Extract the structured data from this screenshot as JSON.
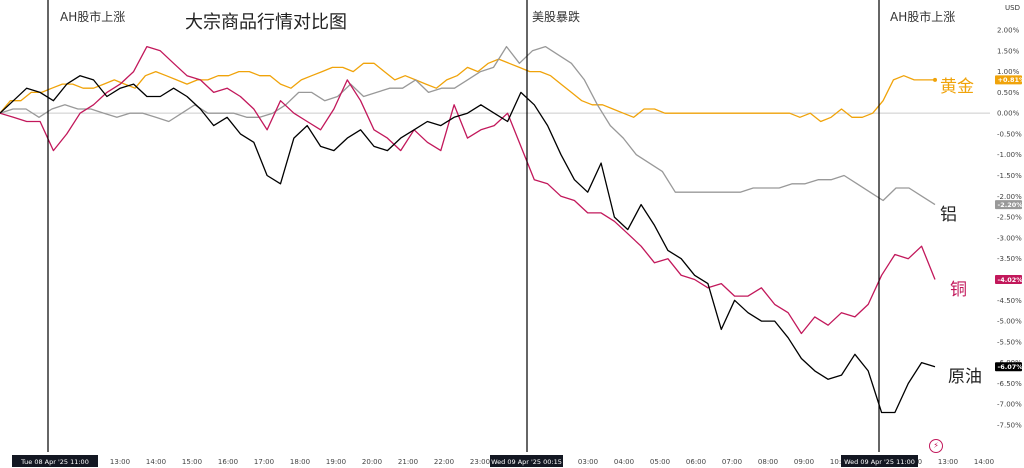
{
  "chart_title": "大宗商品行情对比图",
  "currency": "USD",
  "chart_data": {
    "type": "line",
    "title": "大宗商品行情对比图",
    "ylim": [
      -8.0,
      2.2
    ],
    "y_ticks": [
      "2.00%",
      "1.50%",
      "1.00%",
      "0.50%",
      "0.00%",
      "-0.50%",
      "-1.00%",
      "-1.50%",
      "-2.00%",
      "-2.50%",
      "-3.00%",
      "-3.50%",
      "-4.00%",
      "-4.50%",
      "-5.00%",
      "-5.50%",
      "-6.00%",
      "-6.50%",
      "-7.00%",
      "-7.50%"
    ],
    "x_ticks": [
      "11:00",
      "12:00",
      "13:00",
      "14:00",
      "15:00",
      "16:00",
      "17:00",
      "18:00",
      "19:00",
      "20:00",
      "21:00",
      "22:00",
      "23:00",
      "00:15",
      "02:00",
      "03:00",
      "04:00",
      "05:00",
      "06:00",
      "07:00",
      "08:00",
      "09:00",
      "10:00",
      "11:00",
      "12:00",
      "13:00",
      "14:00"
    ],
    "x_highlight_labels": [
      "Tue 08 Apr '25   11:00",
      "Wed 09 Apr '25   00:15",
      "Wed 09 Apr '25   11:00"
    ],
    "events": [
      "AH股市上涨",
      "美股暴跌",
      "AH股市上涨"
    ],
    "series": [
      {
        "name": "黄金",
        "color": "#f0a30a",
        "last_label": "+0.81%",
        "values": [
          0,
          0.3,
          0.3,
          0.5,
          0.5,
          0.6,
          0.7,
          0.7,
          0.6,
          0.6,
          0.7,
          0.8,
          0.7,
          0.6,
          0.9,
          1.0,
          0.9,
          0.8,
          0.7,
          0.8,
          0.8,
          0.9,
          0.9,
          1.0,
          1.0,
          0.9,
          0.9,
          0.7,
          0.6,
          0.8,
          0.9,
          1.0,
          1.1,
          1.1,
          1.0,
          1.2,
          1.2,
          1.0,
          0.8,
          0.9,
          0.8,
          0.7,
          0.6,
          0.8,
          0.9,
          1.1,
          1.0,
          1.2,
          1.3,
          1.2,
          1.1,
          1.0,
          1.0,
          0.9,
          0.7,
          0.5,
          0.3,
          0.2,
          0.2,
          0.1,
          0.0,
          -0.1,
          0.1,
          0.1,
          0.0,
          0.0,
          0.0,
          0.0,
          0.0,
          0.0,
          0.0,
          0.0,
          0.0,
          0.0,
          0.0,
          0.0,
          0.0,
          -0.1,
          0.0,
          -0.2,
          -0.1,
          0.1,
          -0.1,
          -0.1,
          0.0,
          0.3,
          0.8,
          0.9,
          0.8,
          0.8,
          0.8
        ]
      },
      {
        "name": "铝",
        "color": "#999999",
        "last_label": "-2.20%",
        "values": [
          0,
          0.1,
          0.1,
          -0.1,
          0.1,
          0.2,
          0.1,
          0.1,
          0.0,
          -0.1,
          0.0,
          0.0,
          -0.1,
          -0.2,
          0.0,
          0.2,
          0.0,
          0.0,
          0.0,
          -0.1,
          -0.1,
          0.0,
          0.2,
          0.5,
          0.5,
          0.3,
          0.4,
          0.7,
          0.4,
          0.5,
          0.6,
          0.6,
          0.8,
          0.5,
          0.6,
          0.6,
          0.8,
          1.0,
          1.1,
          1.6,
          1.2,
          1.5,
          1.6,
          1.4,
          1.2,
          0.8,
          0.2,
          -0.3,
          -0.6,
          -1.0,
          -1.2,
          -1.4,
          -1.9,
          -1.9,
          -1.9,
          -1.9,
          -1.9,
          -1.9,
          -1.8,
          -1.8,
          -1.8,
          -1.7,
          -1.7,
          -1.6,
          -1.6,
          -1.5,
          -1.7,
          -1.9,
          -2.1,
          -1.8,
          -1.8,
          -2.0,
          -2.2
        ]
      },
      {
        "name": "铜",
        "color": "#c2185b",
        "last_label": "-4.02%",
        "values": [
          0,
          -0.1,
          -0.2,
          -0.2,
          -0.9,
          -0.5,
          0.0,
          0.2,
          0.5,
          0.7,
          1.0,
          1.6,
          1.5,
          1.2,
          0.9,
          0.8,
          0.5,
          0.6,
          0.4,
          0.1,
          -0.4,
          0.3,
          0.0,
          -0.2,
          -0.4,
          0.1,
          0.8,
          0.3,
          -0.4,
          -0.6,
          -0.9,
          -0.4,
          -0.7,
          -0.9,
          0.2,
          -0.6,
          -0.4,
          -0.3,
          0.0,
          -0.8,
          -1.6,
          -1.7,
          -2.0,
          -2.1,
          -2.4,
          -2.4,
          -2.6,
          -2.9,
          -3.2,
          -3.6,
          -3.5,
          -3.9,
          -4.0,
          -4.2,
          -4.1,
          -4.4,
          -4.4,
          -4.2,
          -4.6,
          -4.8,
          -5.3,
          -4.9,
          -5.1,
          -4.8,
          -4.9,
          -4.6,
          -3.9,
          -3.4,
          -3.5,
          -3.2,
          -4.0
        ]
      },
      {
        "name": "原油",
        "color": "#000000",
        "last_label": "-6.07%",
        "values": [
          0,
          0.3,
          0.6,
          0.5,
          0.3,
          0.7,
          0.9,
          0.8,
          0.4,
          0.6,
          0.7,
          0.4,
          0.4,
          0.6,
          0.4,
          0.1,
          -0.3,
          -0.1,
          -0.5,
          -0.7,
          -1.5,
          -1.7,
          -0.6,
          -0.3,
          -0.8,
          -0.9,
          -0.6,
          -0.4,
          -0.8,
          -0.9,
          -0.6,
          -0.4,
          -0.2,
          -0.3,
          -0.1,
          0.0,
          0.2,
          0.0,
          -0.2,
          0.5,
          0.2,
          -0.3,
          -1.0,
          -1.6,
          -1.9,
          -1.2,
          -2.5,
          -2.8,
          -2.2,
          -2.7,
          -3.3,
          -3.5,
          -3.9,
          -4.1,
          -5.2,
          -4.5,
          -4.8,
          -5.0,
          -5.0,
          -5.4,
          -5.9,
          -6.2,
          -6.4,
          -6.3,
          -5.8,
          -6.2,
          -7.2,
          -7.2,
          -6.5,
          -6.0,
          -6.1
        ]
      }
    ]
  }
}
